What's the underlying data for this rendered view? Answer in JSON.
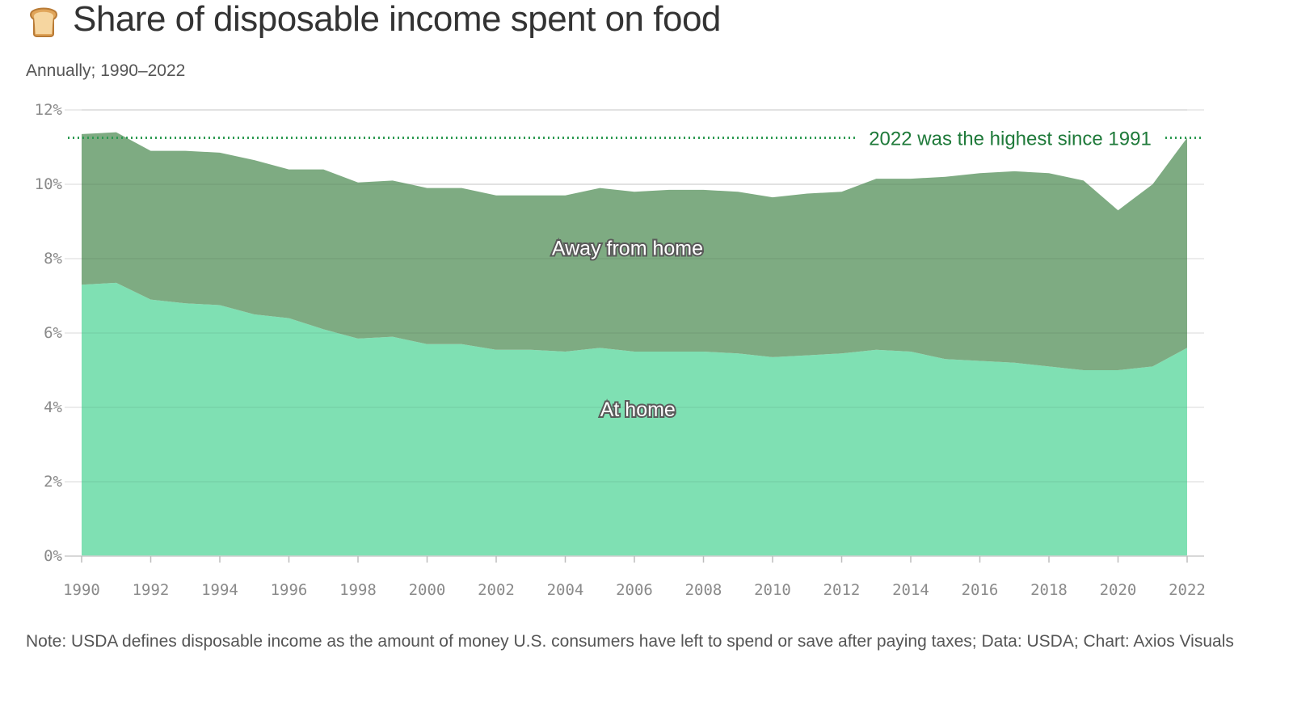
{
  "header": {
    "icon": "bread-icon",
    "title": "Share of disposable income spent on food",
    "subtitle": "Annually; 1990–2022"
  },
  "chart_data": {
    "type": "area",
    "stacked": true,
    "x": [
      1990,
      1991,
      1992,
      1993,
      1994,
      1995,
      1996,
      1997,
      1998,
      1999,
      2000,
      2001,
      2002,
      2003,
      2004,
      2005,
      2006,
      2007,
      2008,
      2009,
      2010,
      2011,
      2012,
      2013,
      2014,
      2015,
      2016,
      2017,
      2018,
      2019,
      2020,
      2021,
      2022
    ],
    "series": [
      {
        "name": "At home",
        "label": "At home",
        "color": "#7fe0b3",
        "values": [
          7.3,
          7.35,
          6.9,
          6.8,
          6.75,
          6.5,
          6.4,
          6.1,
          5.85,
          5.9,
          5.7,
          5.7,
          5.55,
          5.55,
          5.5,
          5.6,
          5.5,
          5.5,
          5.5,
          5.45,
          5.35,
          5.4,
          5.45,
          5.55,
          5.5,
          5.3,
          5.25,
          5.2,
          5.1,
          5.0,
          5.0,
          5.1,
          5.6
        ]
      },
      {
        "name": "Away from home",
        "label": "Away from home",
        "color": "#7eab82",
        "values": [
          4.05,
          4.05,
          4.0,
          4.1,
          4.1,
          4.15,
          4.0,
          4.3,
          4.2,
          4.2,
          4.2,
          4.2,
          4.15,
          4.15,
          4.2,
          4.3,
          4.3,
          4.35,
          4.35,
          4.35,
          4.3,
          4.35,
          4.35,
          4.6,
          4.65,
          4.9,
          5.05,
          5.15,
          5.2,
          5.1,
          4.3,
          4.9,
          5.65
        ]
      }
    ],
    "ylim": [
      0,
      12
    ],
    "y_ticks": [
      "0%",
      "2%",
      "4%",
      "6%",
      "8%",
      "10%",
      "12%"
    ],
    "x_ticks": [
      "1990",
      "1992",
      "1994",
      "1996",
      "1998",
      "2000",
      "2002",
      "2004",
      "2006",
      "2008",
      "2010",
      "2012",
      "2014",
      "2016",
      "2018",
      "2020",
      "2022"
    ],
    "grid": true,
    "annotation": {
      "text": "2022 was the highest since 1991",
      "value": 11.25,
      "color": "#2e9b53"
    },
    "xlabel": "",
    "ylabel": ""
  },
  "footer": {
    "note": "Note: USDA defines disposable income as the amount of money U.S. consumers have left to spend or save after paying taxes; Data: USDA; Chart: Axios Visuals"
  }
}
